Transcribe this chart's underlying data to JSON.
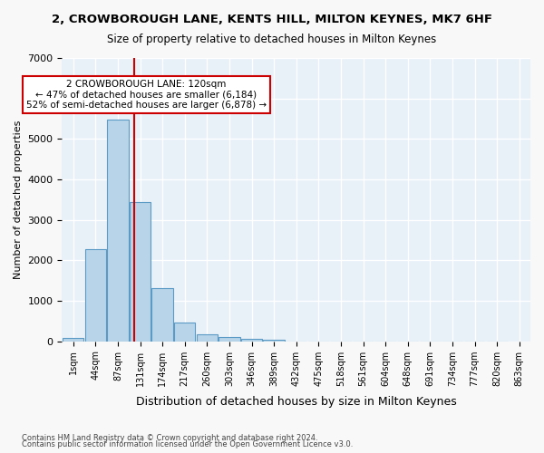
{
  "title1": "2, CROWBOROUGH LANE, KENTS HILL, MILTON KEYNES, MK7 6HF",
  "title2": "Size of property relative to detached houses in Milton Keynes",
  "xlabel": "Distribution of detached houses by size in Milton Keynes",
  "ylabel": "Number of detached properties",
  "footnote1": "Contains HM Land Registry data © Crown copyright and database right 2024.",
  "footnote2": "Contains public sector information licensed under the Open Government Licence v3.0.",
  "bar_color": "#b8d4e8",
  "bar_edge_color": "#5a9ac5",
  "background_color": "#e8f0f8",
  "grid_color": "#ffffff",
  "annotation_line_color": "#cc0000",
  "annotation_box_line_color": "#cc0000",
  "annotation_text1": "2 CROWBOROUGH LANE: 120sqm",
  "annotation_text2": "← 47% of detached houses are smaller (6,184)",
  "annotation_text3": "52% of semi-detached houses are larger (6,878) →",
  "property_size_sqm": 120,
  "categories": [
    "1sqm",
    "44sqm",
    "87sqm",
    "131sqm",
    "174sqm",
    "217sqm",
    "260sqm",
    "303sqm",
    "346sqm",
    "389sqm",
    "432sqm",
    "475sqm",
    "518sqm",
    "561sqm",
    "604sqm",
    "648sqm",
    "691sqm",
    "734sqm",
    "777sqm",
    "820sqm",
    "863sqm"
  ],
  "bin_edges": [
    1,
    44,
    87,
    131,
    174,
    217,
    260,
    303,
    346,
    389,
    432,
    475,
    518,
    561,
    604,
    648,
    691,
    734,
    777,
    820,
    863
  ],
  "values": [
    80,
    2280,
    5480,
    3440,
    1310,
    460,
    165,
    100,
    65,
    40,
    0,
    0,
    0,
    0,
    0,
    0,
    0,
    0,
    0,
    0
  ],
  "ylim": [
    0,
    7000
  ],
  "yticks": [
    0,
    1000,
    2000,
    3000,
    4000,
    5000,
    6000,
    7000
  ]
}
